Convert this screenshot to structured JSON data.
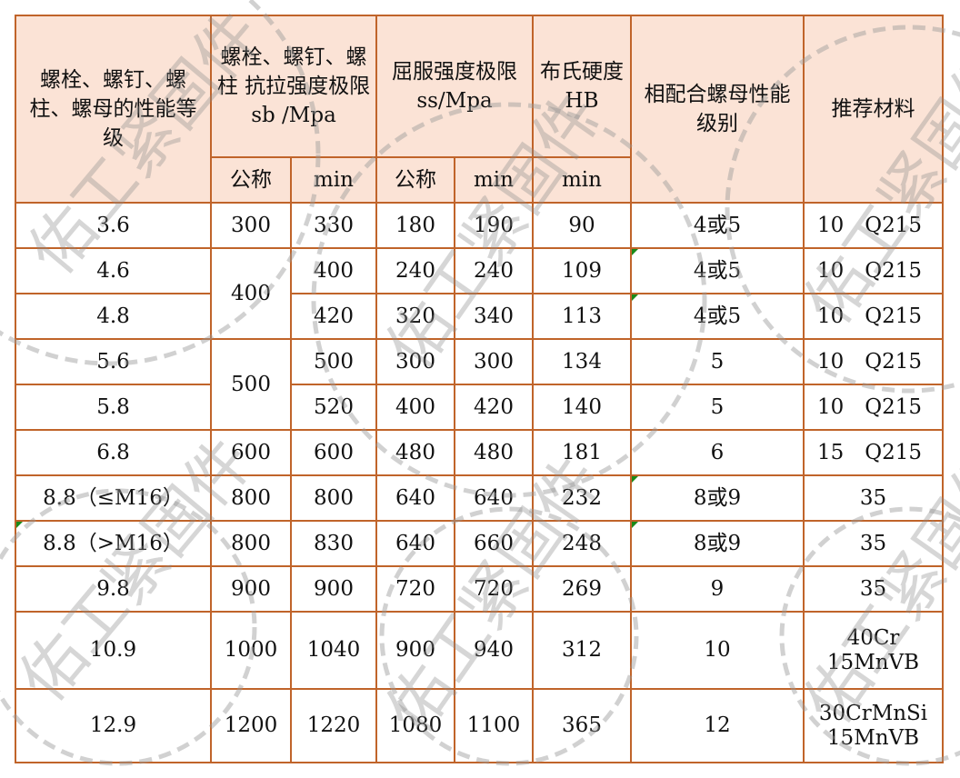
{
  "headers": {
    "grade": "螺栓、螺钉、螺柱、螺母的性能等级",
    "tensile": "螺栓、螺钉、螺柱 抗拉强度极限 sb /Mpa",
    "yield": "屈服强度极限 ss/Mpa",
    "hardness": "布氏硬度 HB",
    "nut": "相配合螺母性能级别",
    "material": "推荐材料",
    "nominal": "公称",
    "min": "min"
  },
  "rows": [
    {
      "grade": "3.6",
      "nominal": "300",
      "min": "330",
      "ys_nom": "180",
      "ys_min": "190",
      "hb": "90",
      "nut": "4或5",
      "material": "10　Q215"
    },
    {
      "grade": "4.6",
      "nominal": "400",
      "min": "400",
      "ys_nom": "240",
      "ys_min": "240",
      "hb": "109",
      "nut": "4或5",
      "material": "10　Q215"
    },
    {
      "grade": "4.8",
      "nominal": "400",
      "min": "420",
      "ys_nom": "320",
      "ys_min": "340",
      "hb": "113",
      "nut": "4或5",
      "material": "10　Q215"
    },
    {
      "grade": "5.6",
      "nominal": "500",
      "min": "500",
      "ys_nom": "300",
      "ys_min": "300",
      "hb": "134",
      "nut": "5",
      "material": "10　Q215"
    },
    {
      "grade": "5.8",
      "nominal": "500",
      "min": "520",
      "ys_nom": "400",
      "ys_min": "420",
      "hb": "140",
      "nut": "5",
      "material": "10　Q215"
    },
    {
      "grade": "6.8",
      "nominal": "600",
      "min": "600",
      "ys_nom": "480",
      "ys_min": "480",
      "hb": "181",
      "nut": "6",
      "material": "15　Q215"
    },
    {
      "grade": "8.8（≤M16）",
      "nominal": "800",
      "min": "800",
      "ys_nom": "640",
      "ys_min": "640",
      "hb": "232",
      "nut": "8或9",
      "material": "35"
    },
    {
      "grade": "8.8（>M16）",
      "nominal": "800",
      "min": "830",
      "ys_nom": "640",
      "ys_min": "660",
      "hb": "248",
      "nut": "8或9",
      "material": "35"
    },
    {
      "grade": "9.8",
      "nominal": "900",
      "min": "900",
      "ys_nom": "720",
      "ys_min": "720",
      "hb": "269",
      "nut": "9",
      "material": "35"
    },
    {
      "grade": "10.9",
      "nominal": "1000",
      "min": "1040",
      "ys_nom": "900",
      "ys_min": "940",
      "hb": "312",
      "nut": "10",
      "material": "40Cr 15MnVB"
    },
    {
      "grade": "12.9",
      "nominal": "1200",
      "min": "1220",
      "ys_nom": "1080",
      "ys_min": "1100",
      "hb": "365",
      "nut": "12",
      "material": "30CrMnSi 15MnVB"
    }
  ],
  "watermark": "佑工紧固件",
  "colors": {
    "header_bg": "#fbe3d6",
    "border": "#c0642a",
    "marker": "#1a8a1a"
  }
}
